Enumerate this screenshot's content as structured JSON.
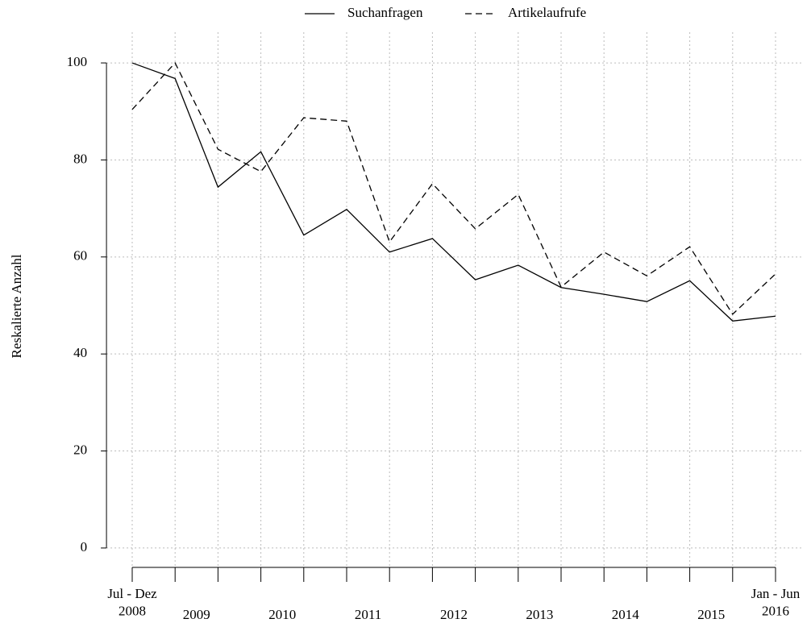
{
  "chart_data": {
    "type": "line",
    "y_label": "Reskalierte Anzahl",
    "categories": [
      "Jul - Dez\n2008",
      "2009",
      null,
      "2010",
      null,
      "2011",
      null,
      "2012",
      null,
      "2013",
      null,
      "2014",
      null,
      "2015",
      null,
      "Jan - Jun\n2016"
    ],
    "series": [
      {
        "name": "Suchanfragen",
        "color": "#000000",
        "dash": "solid",
        "values": [
          100,
          96.8,
          74.4,
          81.7,
          64.5,
          69.8,
          61,
          63.8,
          55.3,
          58.3,
          53.7,
          52.3,
          50.8,
          55.1,
          46.8,
          47.8
        ]
      },
      {
        "name": "Artikelaufrufe",
        "color": "#000000",
        "dash": "dashed",
        "values": [
          90.4,
          100,
          82.2,
          77.6,
          88.7,
          88,
          63.1,
          75.1,
          65.8,
          72.9,
          53.8,
          61,
          56.1,
          62.1,
          48.2,
          56.5
        ]
      }
    ],
    "ylim": [
      -4,
      104
    ],
    "yticks": [
      0,
      20,
      40,
      60,
      80,
      100
    ],
    "grid": true,
    "legend": "top"
  }
}
